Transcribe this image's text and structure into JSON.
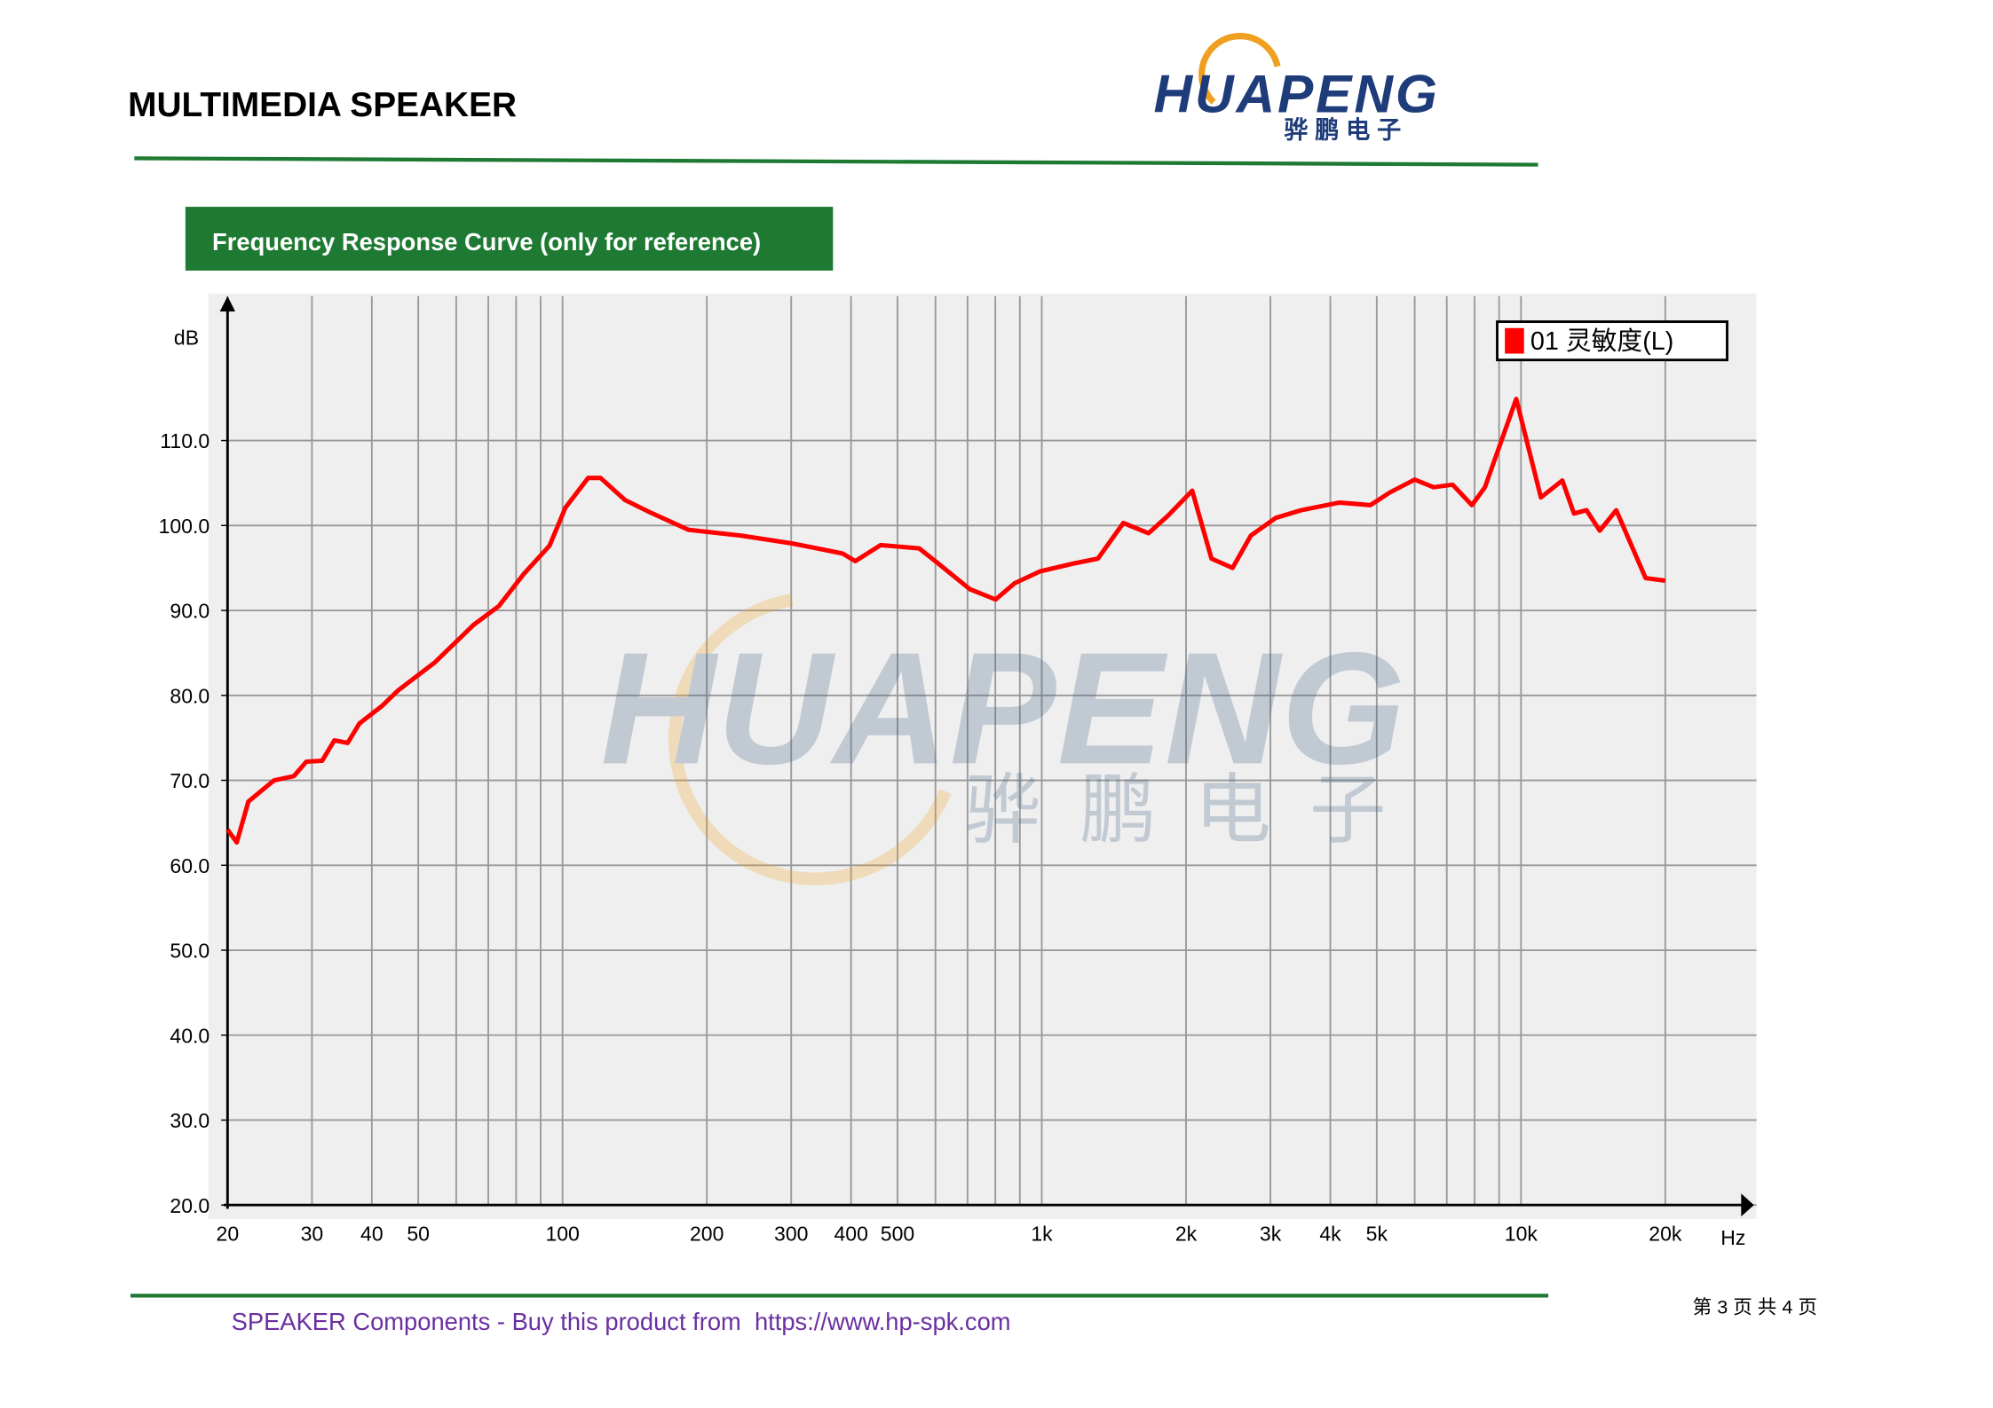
{
  "header": {
    "title": "MULTIMEDIA SPEAKER",
    "logo_name": "HUAPENG",
    "logo_sub": "骅 鹏 电 子"
  },
  "section_title": "Frequency Response Curve (only for reference)",
  "chart_data": {
    "type": "line",
    "log_x": true,
    "grid": true,
    "ylabel": "dB",
    "xlabel": "Hz",
    "xlim": [
      20,
      31000
    ],
    "ylim": [
      20,
      127
    ],
    "xticks": [
      20,
      30,
      40,
      50,
      100,
      200,
      300,
      400,
      500,
      {
        "value": 1000,
        "label": "1k"
      },
      {
        "value": 2000,
        "label": "2k"
      },
      {
        "value": 3000,
        "label": "3k"
      },
      {
        "value": 4000,
        "label": "4k"
      },
      {
        "value": 5000,
        "label": "5k"
      },
      {
        "value": 10000,
        "label": "10k"
      },
      {
        "value": 20000,
        "label": "20k"
      }
    ],
    "xgrid_minor": [
      60,
      70,
      80,
      90,
      600,
      700,
      800,
      900,
      6000,
      7000,
      8000,
      9000
    ],
    "yticks": [
      {
        "value": 20,
        "label": "20.0"
      },
      {
        "value": 30,
        "label": "30.0"
      },
      {
        "value": 40,
        "label": "40.0"
      },
      {
        "value": 50,
        "label": "50.0"
      },
      {
        "value": 60,
        "label": "60.0"
      },
      {
        "value": 70,
        "label": "70.0"
      },
      {
        "value": 80,
        "label": "80.0"
      },
      {
        "value": 90,
        "label": "90.0"
      },
      {
        "value": 100,
        "label": "100.0"
      },
      {
        "value": 110,
        "label": "110.0"
      }
    ],
    "x": [
      20,
      20.9,
      22.1,
      25,
      27.5,
      29.2,
      31.5,
      33.4,
      35.6,
      37.7,
      42.1,
      45.4,
      54.2,
      65.2,
      73.6,
      83,
      93.9,
      101.4,
      113.1,
      120,
      135,
      153,
      183,
      236,
      300,
      340,
      384,
      408,
      461,
      555,
      609,
      708,
      801,
      878,
      992,
      1160,
      1310,
      1480,
      1670,
      1830,
      2060,
      2260,
      2500,
      2730,
      3080,
      3480,
      4180,
      4850,
      5330,
      6000,
      6570,
      7200,
      7900,
      8410,
      9770,
      11000,
      12200,
      12900,
      13700,
      14600,
      15800,
      18200,
      20000
    ],
    "series": [
      {
        "name": "01 灵敏度(L)",
        "color": "#ff0000",
        "values": [
          64.2,
          62.7,
          67.5,
          70,
          70.5,
          72.2,
          72.3,
          74.7,
          74.4,
          76.7,
          78.8,
          80.6,
          83.9,
          88.3,
          90.5,
          94.3,
          97.6,
          102.1,
          105.6,
          105.6,
          103,
          101.5,
          99.5,
          98.8,
          97.9,
          97.3,
          96.7,
          95.8,
          97.7,
          97.3,
          95.5,
          92.5,
          91.3,
          93.2,
          94.6,
          95.5,
          96.1,
          100.3,
          99.1,
          101.1,
          104.1,
          96.1,
          95,
          98.8,
          100.9,
          101.8,
          102.7,
          102.4,
          103.9,
          105.4,
          104.5,
          104.8,
          102.4,
          104.5,
          114.9,
          103.3,
          105.3,
          101.4,
          101.8,
          99.4,
          101.8,
          93.8,
          93.5
        ]
      }
    ]
  },
  "footer": {
    "text": "SPEAKER Components - Buy this product from  https://www.hp-spk.com",
    "page": "第 3 页 共 4 页"
  }
}
